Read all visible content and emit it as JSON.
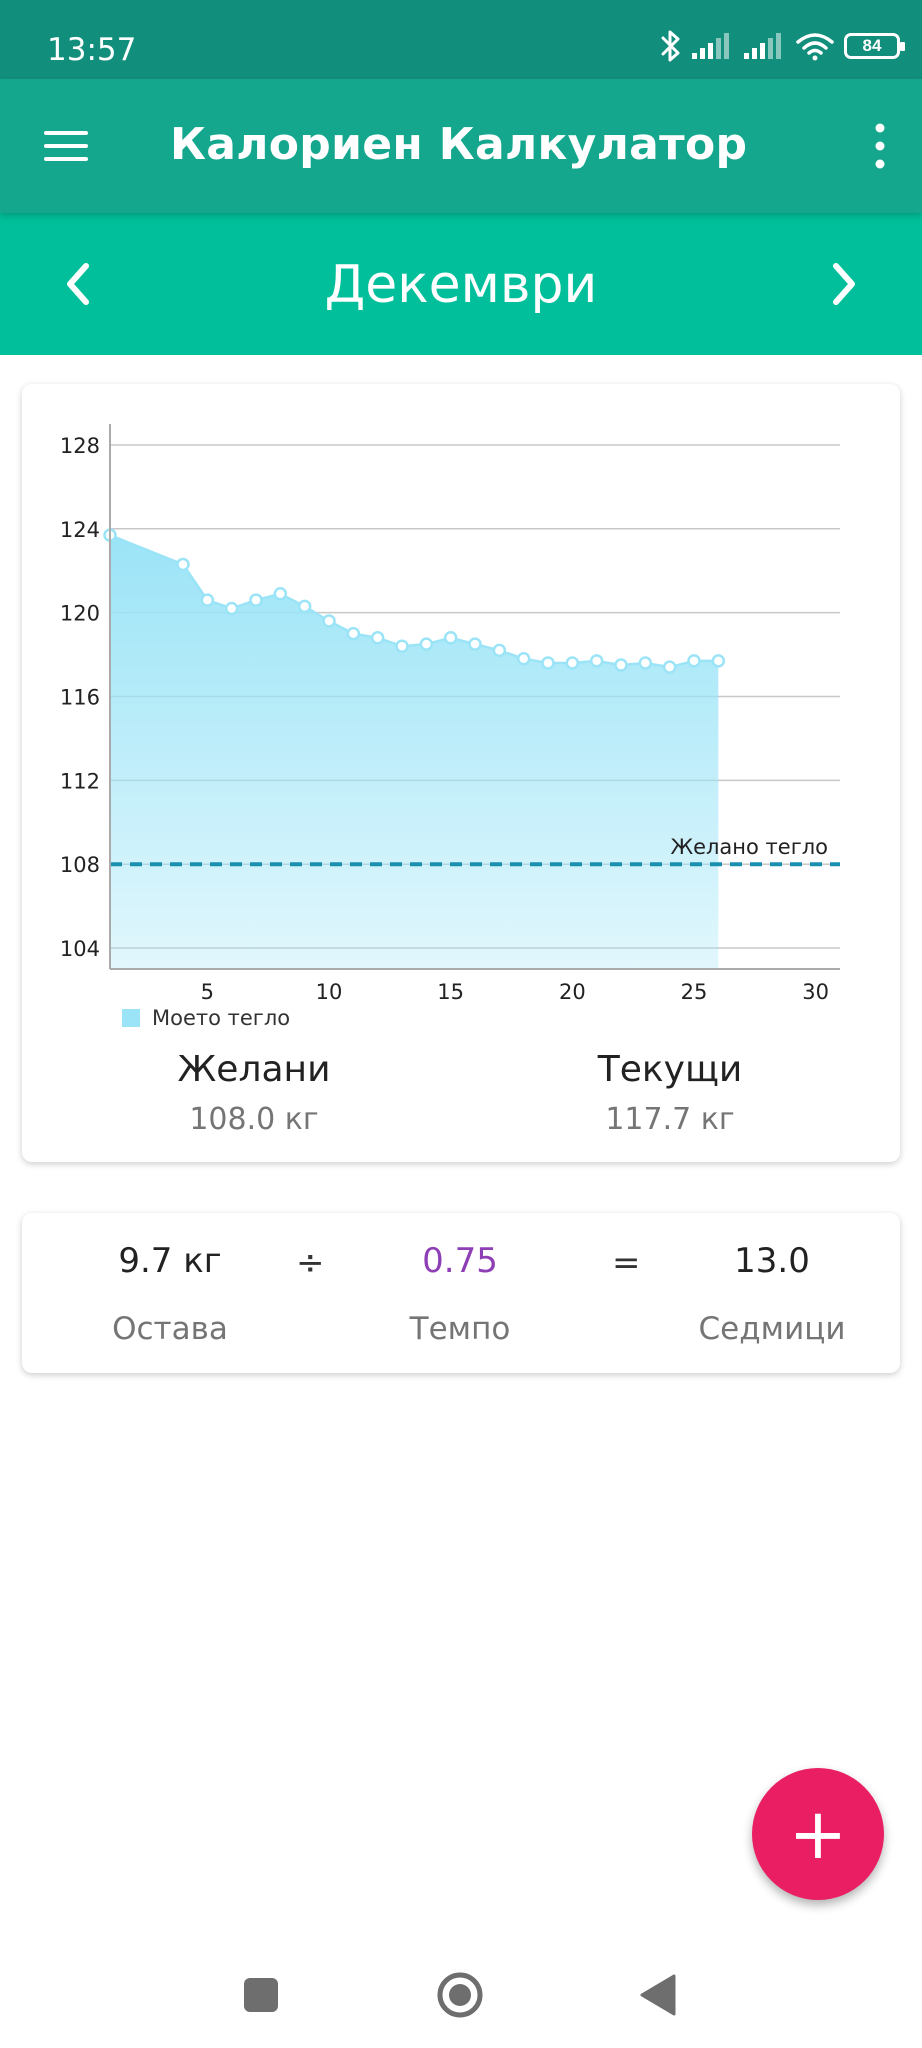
{
  "status_bar": {
    "time": "13:57",
    "battery": "84",
    "icons": [
      "bluetooth-icon",
      "signal-icon",
      "signal-icon",
      "wifi-icon",
      "battery-icon"
    ]
  },
  "app_bar": {
    "title": "Калориен Калкулатор",
    "icons": [
      "menu-icon",
      "more-vert-icon"
    ]
  },
  "month_nav": {
    "month": "Декември",
    "icons": [
      "chevron-left-icon",
      "chevron-right-icon"
    ]
  },
  "colors": {
    "status_bar": "#128f7c",
    "app_bar": "#14a78e",
    "month_bar": "#00bf9a",
    "chart_area": "#9be4f7",
    "goal_line": "#1a90b0",
    "pace": "#8e3fb5",
    "fab": "#e91e63"
  },
  "chart_data": {
    "type": "area",
    "series": [
      {
        "name": "Моето тегло",
        "x": [
          1,
          4,
          5,
          6,
          7,
          8,
          9,
          10,
          11,
          12,
          13,
          14,
          15,
          16,
          17,
          18,
          19,
          20,
          21,
          22,
          23,
          24,
          25,
          26
        ],
        "values": [
          123.7,
          122.3,
          120.6,
          120.2,
          120.6,
          120.9,
          120.3,
          119.6,
          119.0,
          118.8,
          118.4,
          118.5,
          118.8,
          118.5,
          118.2,
          117.8,
          117.6,
          117.6,
          117.7,
          117.5,
          117.6,
          117.4,
          117.7,
          117.7
        ]
      }
    ],
    "goal_line": {
      "value": 108,
      "label": "Желано тегло"
    },
    "x_ticks": [
      5,
      10,
      15,
      20,
      25,
      30
    ],
    "y_ticks": [
      104,
      108,
      112,
      116,
      120,
      124,
      128
    ],
    "xlim": [
      1,
      31
    ],
    "ylim": [
      103,
      129
    ],
    "grid": true,
    "legend": "bottom-left"
  },
  "summary": {
    "goal_label": "Желани",
    "goal_value": "108.0 кг",
    "current_label": "Текущи",
    "current_value": "117.7 кг"
  },
  "calc": {
    "remaining_value": "9.7 кг",
    "remaining_label": "Остава",
    "divide": "÷",
    "pace_value": "0.75",
    "pace_label": "Темпо",
    "equals": "=",
    "weeks_value": "13.0",
    "weeks_label": "Седмици"
  },
  "fab": {
    "label": "+",
    "icon": "plus-icon"
  },
  "nav_bar": {
    "icons": [
      "recents-square-icon",
      "home-circle-icon",
      "back-triangle-icon"
    ]
  }
}
